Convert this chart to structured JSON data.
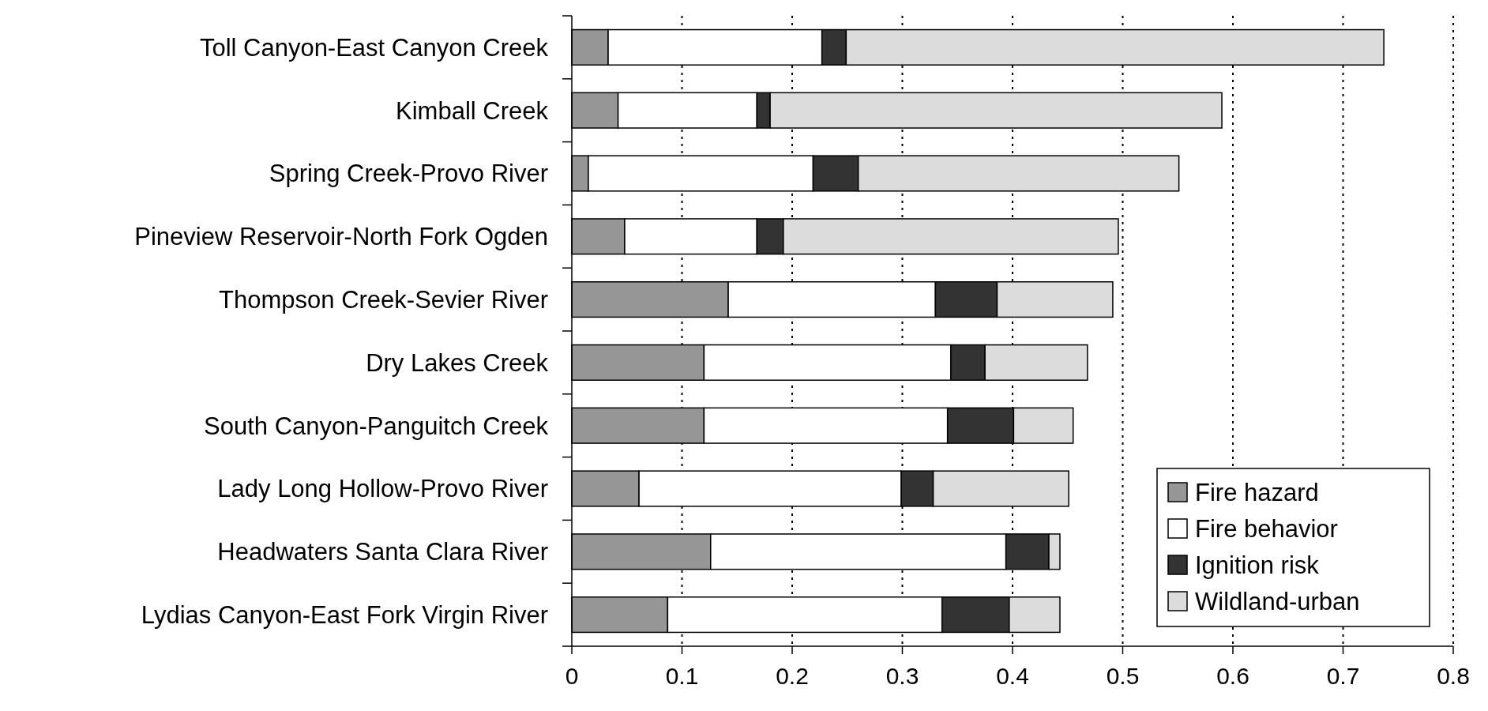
{
  "chart_data": {
    "type": "bar",
    "orientation": "horizontal",
    "stacked": true,
    "categories": [
      "Toll Canyon-East Canyon Creek",
      "Kimball Creek",
      "Spring Creek-Provo River",
      "Pineview Reservoir-North Fork Ogden",
      "Thompson Creek-Sevier River",
      "Dry Lakes Creek",
      "South Canyon-Panguitch Creek",
      "Lady Long Hollow-Provo River",
      "Headwaters Santa Clara River",
      "Lydias Canyon-East Fork Virgin River"
    ],
    "series": [
      {
        "name": "Fire hazard",
        "color": "#969696",
        "values": [
          0.033,
          0.042,
          0.015,
          0.048,
          0.142,
          0.12,
          0.12,
          0.061,
          0.126,
          0.087
        ]
      },
      {
        "name": "Fire behavior",
        "color": "#ffffff",
        "values": [
          0.194,
          0.126,
          0.204,
          0.12,
          0.188,
          0.224,
          0.221,
          0.238,
          0.268,
          0.249
        ]
      },
      {
        "name": "Ignition risk",
        "color": "#333333",
        "values": [
          0.022,
          0.012,
          0.041,
          0.024,
          0.056,
          0.031,
          0.06,
          0.029,
          0.039,
          0.061
        ]
      },
      {
        "name": "Wildland-urban",
        "color": "#dcdcdc",
        "values": [
          0.488,
          0.41,
          0.291,
          0.304,
          0.105,
          0.093,
          0.054,
          0.123,
          0.01,
          0.046
        ]
      }
    ],
    "xlim": [
      0,
      0.8
    ],
    "xticks": [
      0,
      0.1,
      0.2,
      0.3,
      0.4,
      0.5,
      0.6,
      0.7,
      0.8
    ],
    "grid": "x",
    "legend": "bottom right"
  }
}
